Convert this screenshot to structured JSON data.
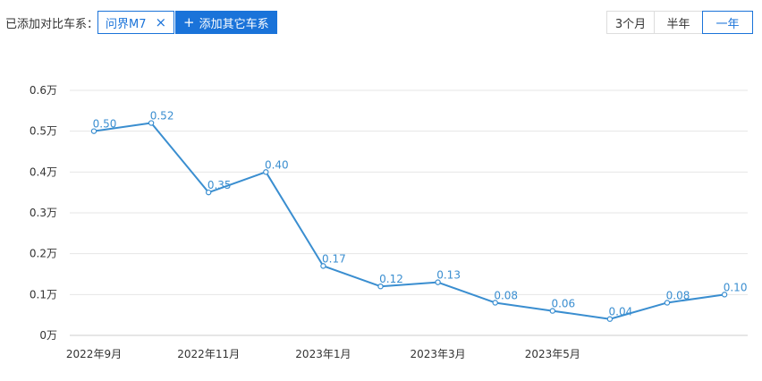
{
  "compare_bar": {
    "label": "已添加对比车系：",
    "selected_car": "问界M7",
    "remove_icon": "close-icon",
    "add_button_label": "添加其它车系",
    "add_icon": "plus-icon",
    "accent_color": "#1a73d9"
  },
  "time_range": {
    "options": [
      "3个月",
      "半年",
      "一年"
    ],
    "selected": "一年"
  },
  "chart_data": {
    "type": "line",
    "x": [
      "2022-09",
      "2022-10",
      "2022-11",
      "2022-12",
      "2023-01",
      "2023-02",
      "2023-03",
      "2023-04",
      "2023-05",
      "2023-06",
      "2023-07",
      "2023-08"
    ],
    "tick_labels": [
      "2022年9月",
      "2022年11月",
      "2023年1月",
      "2023年3月",
      "2023年5月"
    ],
    "series": [
      {
        "values": [
          0.5,
          0.52,
          0.35,
          0.4,
          0.17,
          0.12,
          0.13,
          0.08,
          0.06,
          0.04,
          0.08,
          0.1
        ],
        "labels": [
          "0.50",
          "0.52",
          "0.35",
          "0.40",
          "0.17",
          "0.12",
          "0.13",
          "0.08",
          "0.06",
          "0.04",
          "0.08",
          "0.10"
        ],
        "color": "#3a8ed0"
      }
    ],
    "y_ticks": [
      "0万",
      "0.1万",
      "0.2万",
      "0.3万",
      "0.4万",
      "0.5万",
      "0.6万"
    ],
    "ylim": [
      0,
      0.6
    ],
    "grid": true,
    "title": "",
    "xlabel": "",
    "ylabel": ""
  }
}
